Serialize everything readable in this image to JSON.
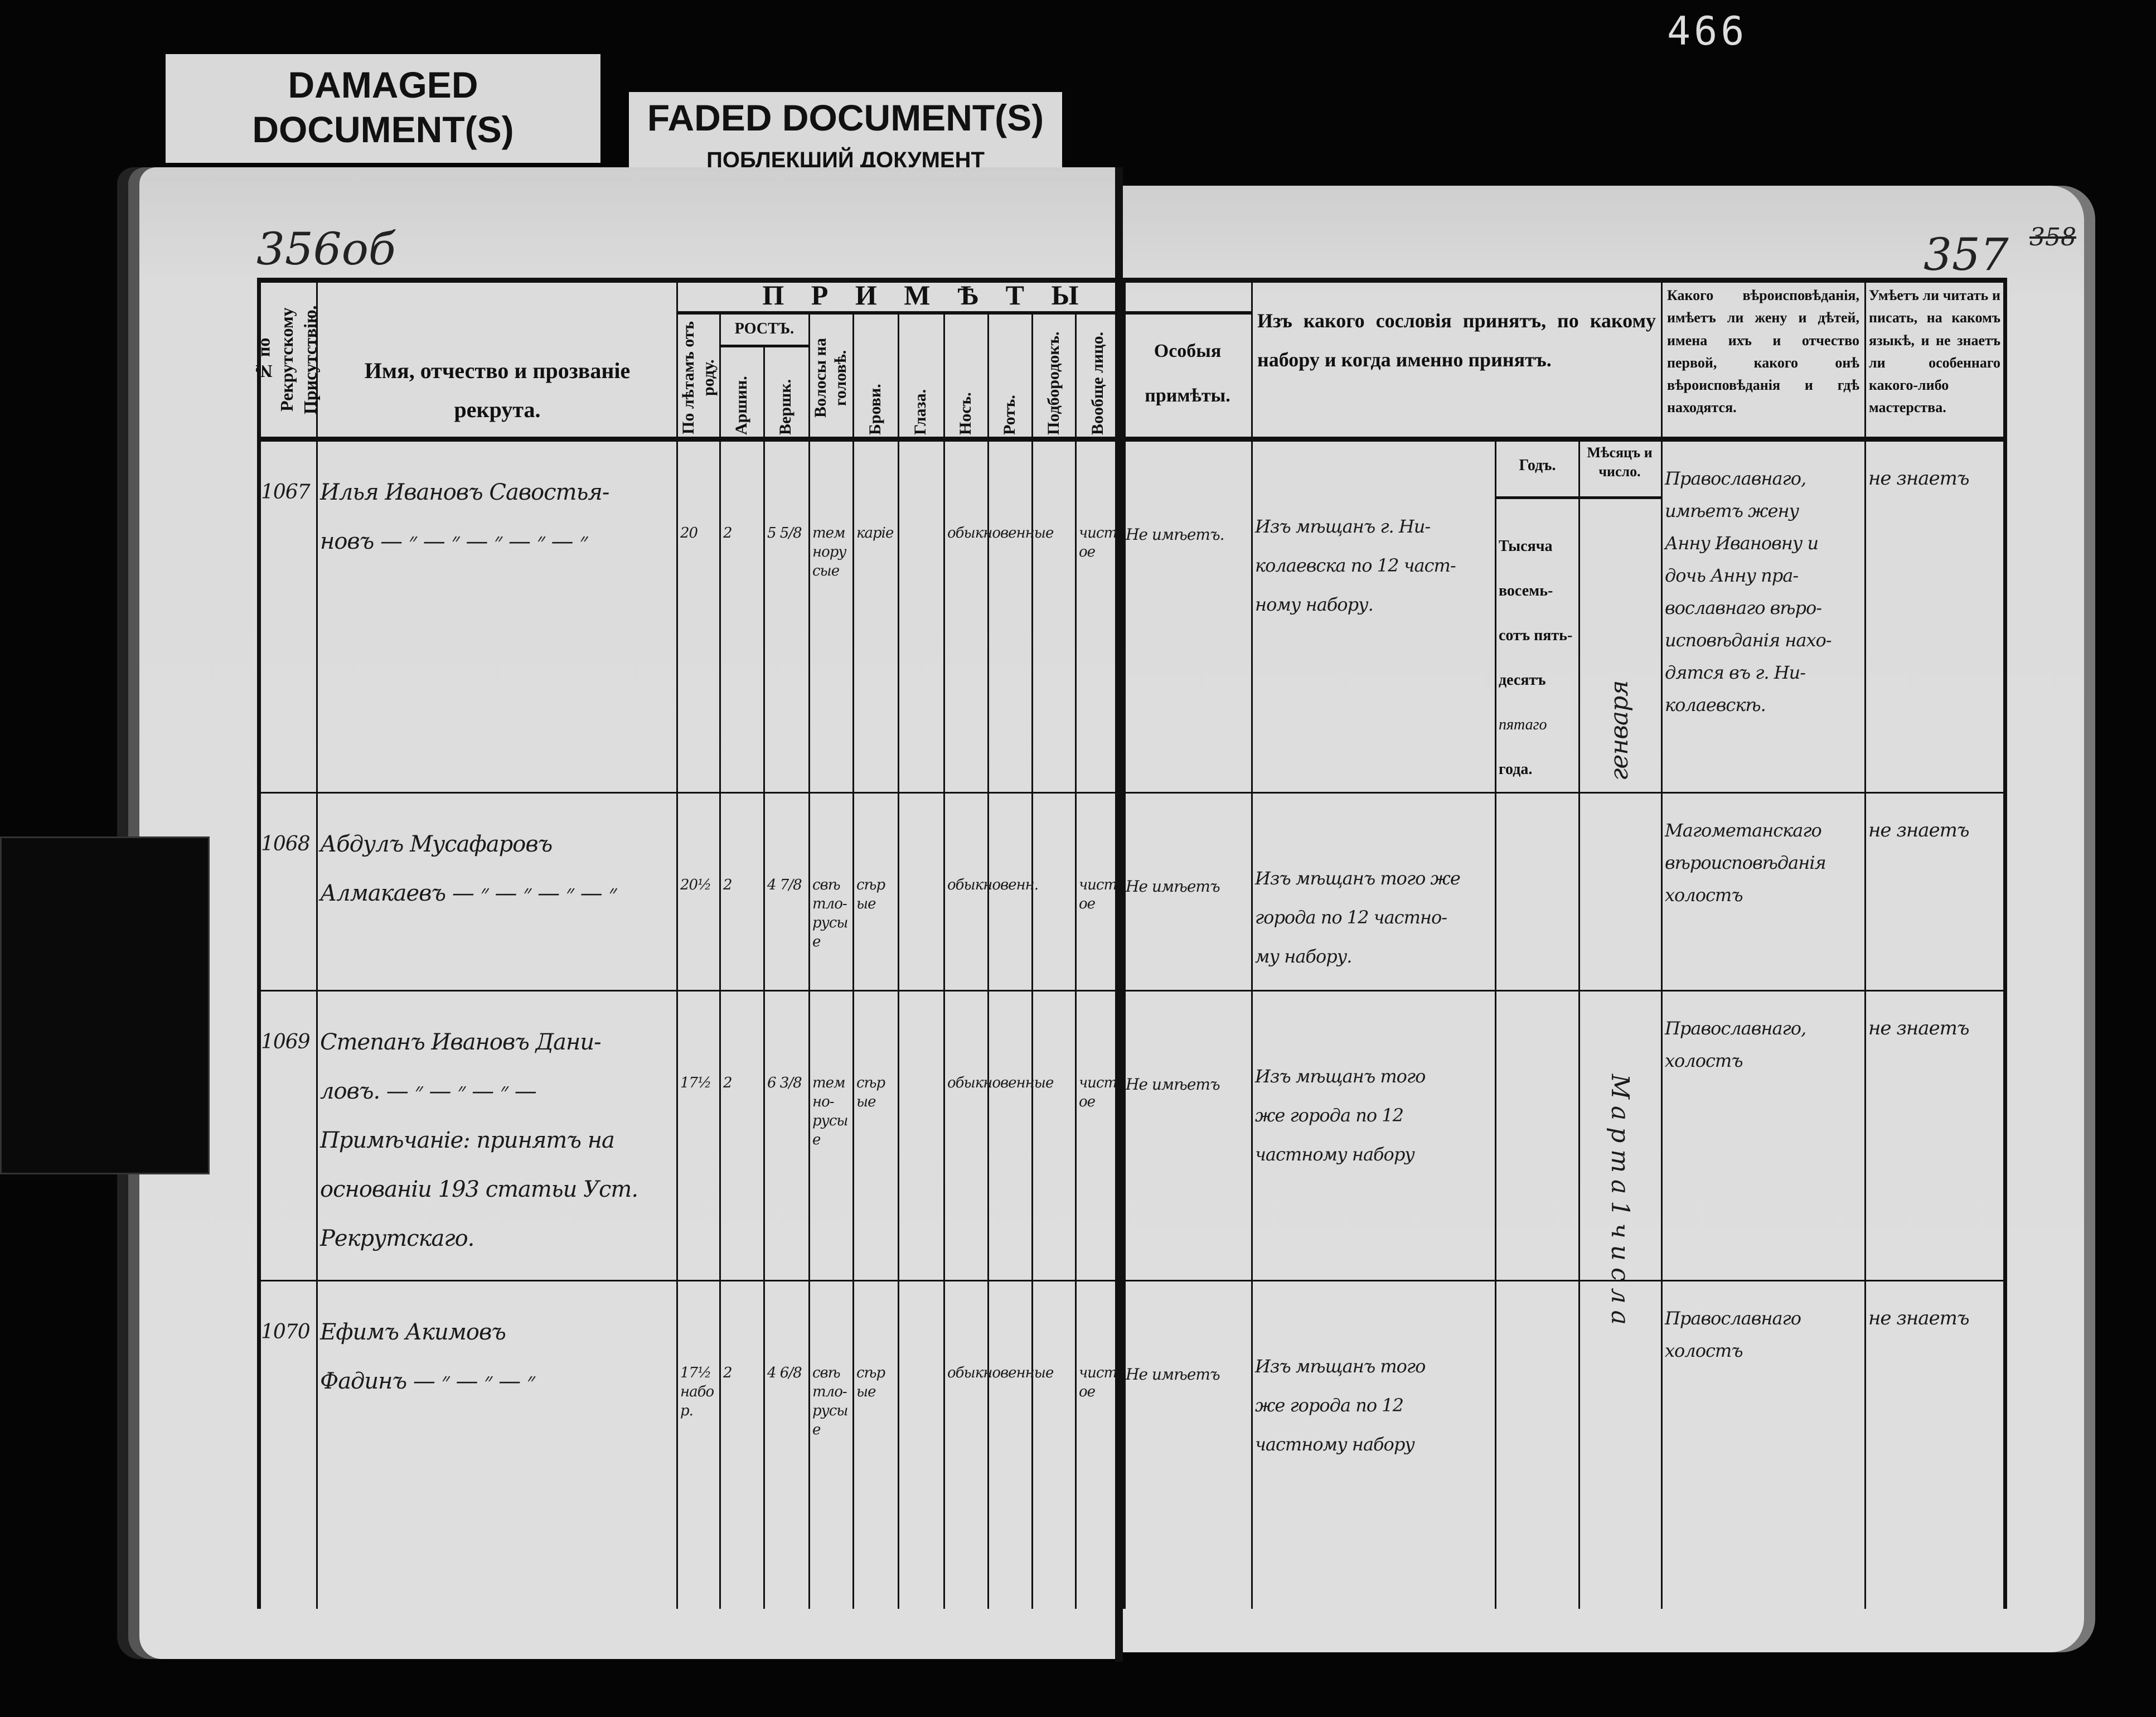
{
  "labels": {
    "damaged": "DAMAGED DOCUMENT(S)",
    "faded": "FADED DOCUMENT(S)",
    "faded_ru": "ПОБЛЕКШИЙ ДОКУМЕНТ"
  },
  "archive_number": "466",
  "left_page": {
    "folio": "356об"
  },
  "right_page": {
    "folio": "357",
    "folio_struck": "358"
  },
  "header": {
    "col_number": "№ по Рекрутскому Присутствію.",
    "col_name": "Имя, отчество и прозваніе рекрута.",
    "primety": "П Р И М Ѣ Т Ы",
    "col_age": "По лѣтамъ отъ роду.",
    "rost": "РОСТЪ.",
    "col_arshin": "Аршин.",
    "col_vershok": "Вершк.",
    "col_hair": "Волосы на головѣ.",
    "col_brows": "Брови.",
    "col_eyes": "Глаза.",
    "col_nose": "Носъ.",
    "col_mouth": "Ротъ.",
    "col_chin": "Подбородокъ.",
    "col_face": "Вообще лицо.",
    "col_special": "Особыя примѣты.",
    "col_origin": "Изъ какого сословія принятъ, по какому набору и когда именно принятъ.",
    "col_year": "Годъ.",
    "col_month": "Мѣсяцъ и число.",
    "col_religion": "Какого вѣроисповѣданія, имѣетъ ли жену и дѣтей, имена ихъ и отчество первой, какого онѣ вѣроисповѣданія и гдѣ находятся.",
    "col_literacy": "Умѣетъ ли читать и писать, на какомъ языкѣ, и не знаетъ ли особеннаго какого-либо мастерства."
  },
  "year_printed": {
    "l1": "Тысяча",
    "l2": "восемь-",
    "l3": "сотъ пять-",
    "l4": "десятъ",
    "l4_hw": "пя",
    "l5_hw": "таго",
    "l6": "года."
  },
  "month_row1": "генваря",
  "month_rows_2_4": "М а р т а   1   ч и с л а",
  "rows": [
    {
      "number": "1067",
      "name": "Илья Ивановъ Савостья-\nновъ — ״ — ״ — ״ — ״ — ״",
      "age": "20",
      "arshin": "2",
      "vershok": "5 5/8",
      "hair": "темнорусые",
      "brows": "карiе",
      "eyes": "",
      "features": "обыкновенные",
      "face": "чистое",
      "special": "Не имѣетъ.",
      "origin": "Изъ мѣщанъ г. Ни-\nколаевска по 12 част-\nному набору.",
      "religion": "Православнаго,\nимѣетъ жену\nАнну Ивановну и\nдочь Анну пра-\nвославнаго вѣро-\nисповѣданія нахо-\nдятся въ г. Ни-\nколаевскѣ.",
      "literacy": "не знаетъ"
    },
    {
      "number": "1068",
      "name": "Абдулъ Мусафаровъ\nАлмакаевъ — ״ — ״ — ״ — ״",
      "age": "20½",
      "arshin": "2",
      "vershok": "4 7/8",
      "hair": "свѣтло-\nрусые",
      "brows": "сѣрые",
      "eyes": "",
      "features": "обыкновенн.",
      "face": "чистое",
      "special": "Не имѣетъ",
      "origin": "Изъ мѣщанъ того же\nгорода по 12 частно-\nму набору.",
      "religion": "Магометанскаго\nвѣроисповѣданія\nхолостъ",
      "literacy": "не знаетъ"
    },
    {
      "number": "1069",
      "name": "Степанъ Ивановъ Дани-\nловъ. — ״ — ״ — ״ —\nПримѣчаніе: принятъ на\nоснованіи 193 статьи Уст.\nРекрутскаго.",
      "age": "17½",
      "arshin": "2",
      "vershok": "6 3/8",
      "hair": "темно-\nрусые",
      "brows": "сѣрые",
      "eyes": "",
      "features": "обыкновенные",
      "face": "чистое",
      "special": "Не имѣетъ",
      "origin": "Изъ мѣщанъ того\nже города по 12\nчастному набору",
      "religion": "Православнаго,\nхолостъ",
      "literacy": "не знаетъ"
    },
    {
      "number": "1070",
      "name": "Ефимъ Акимовъ\nФадинъ — ״ — ״ — ״",
      "age": "17½\nнабор.",
      "arshin": "2",
      "vershok": "4 6/8",
      "hair": "свѣтло-\nрусые",
      "brows": "сѣрые",
      "eyes": "",
      "features": "обыкновенные",
      "face": "чистое",
      "special": "Не имѣетъ",
      "origin": "Изъ мѣщанъ того\nже города по 12\nчастному набору",
      "religion": "Православнаго\nхолостъ",
      "literacy": "не знаетъ"
    }
  ]
}
